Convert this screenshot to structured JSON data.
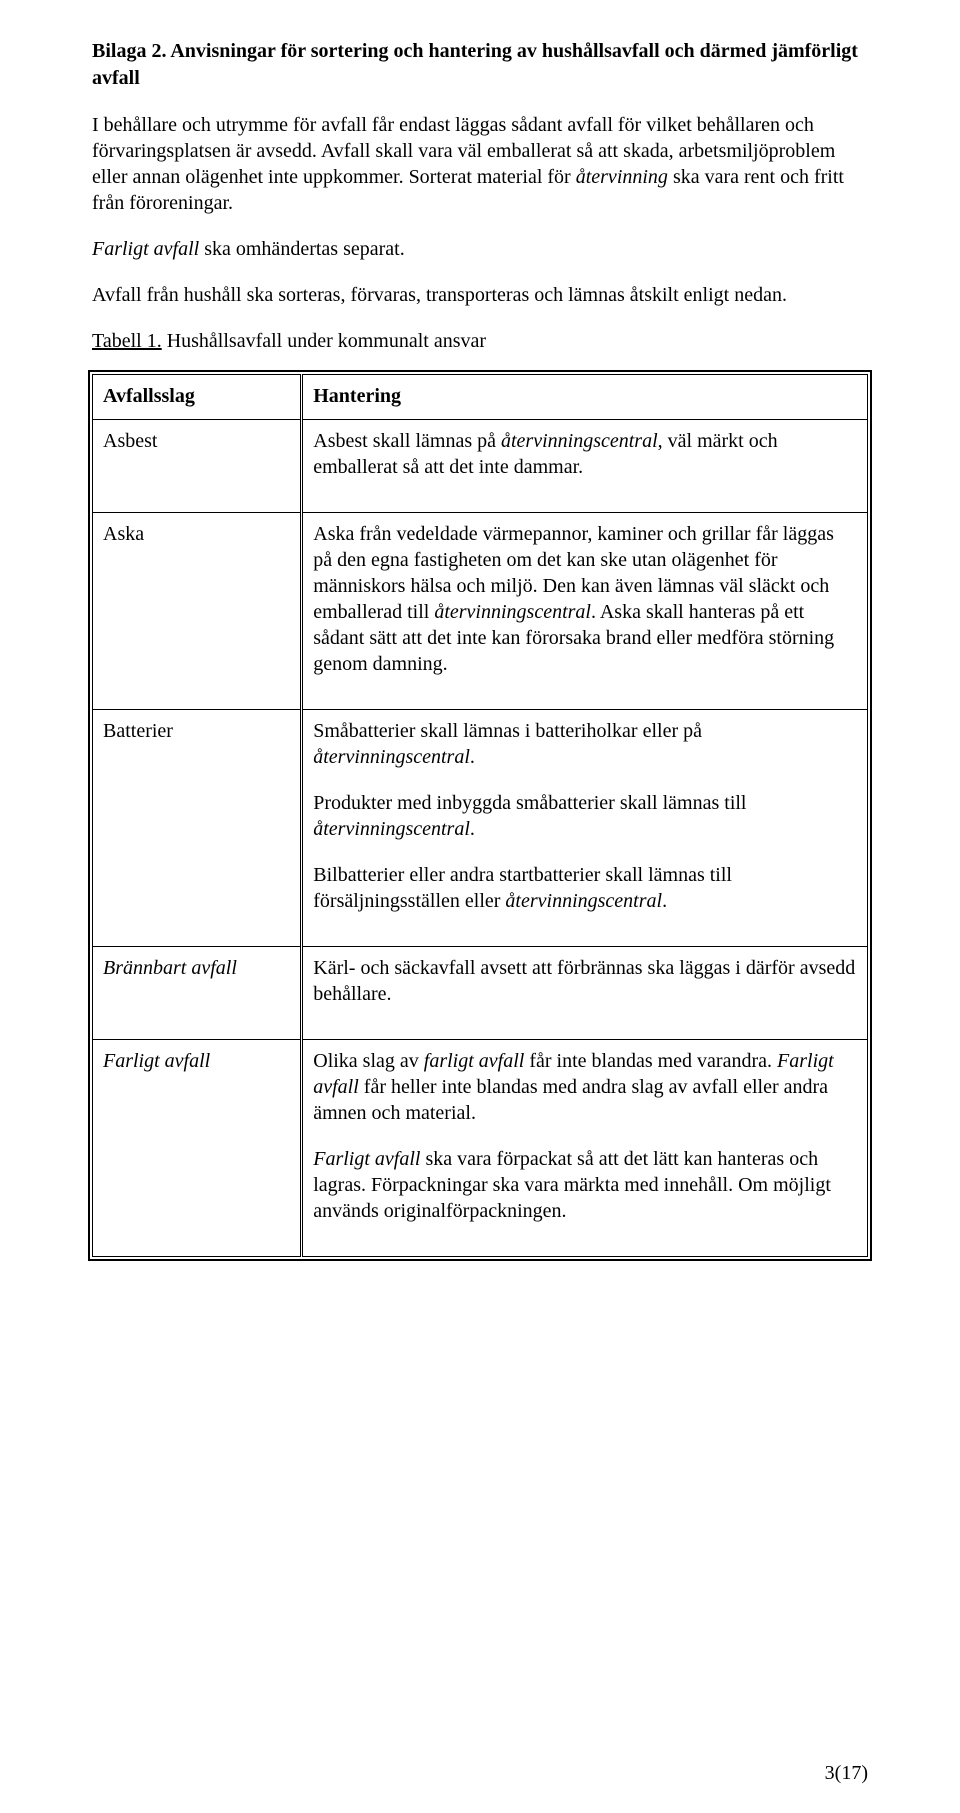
{
  "heading": "Bilaga 2. Anvisningar för sortering och hantering av hushållsavfall och därmed jämförligt avfall",
  "intro": {
    "p1_pre": "I behållare och utrymme för avfall får endast läggas sådant avfall för vilket behållaren och förvaringsplatsen är avsedd. Avfall skall vara väl emballerat så att skada, arbetsmiljöproblem eller annan olägenhet inte uppkommer. Sorterat material för ",
    "p1_it1": "återvinning",
    "p1_post": " ska vara rent och fritt från föroreningar.",
    "p2_it": "Farligt avfall",
    "p2_rest": " ska omhändertas separat.",
    "p3": "Avfall från hushåll ska sorteras, förvaras, transporteras och lämnas åtskilt enligt nedan.",
    "table_caption_u": "Tabell 1.",
    "table_caption_rest": " Hushållsavfall under kommunalt ansvar"
  },
  "table": {
    "header_col1": "Avfallsslag",
    "header_col2": "Hantering",
    "rows": {
      "asbest": {
        "label": "Asbest",
        "desc_pre": "Asbest skall lämnas på ",
        "desc_it": "återvinningscentral",
        "desc_post": ", väl märkt och emballerat så att det inte dammar."
      },
      "aska": {
        "label": "Aska",
        "desc_pre": "Aska från vedeldade värmepannor, kaminer och grillar får läggas på den egna fastigheten om det kan ske utan olägenhet för människors hälsa och miljö. Den kan även lämnas väl släckt och emballerad till ",
        "desc_it": "återvinningscentral",
        "desc_post": ". Aska skall hanteras på ett sådant sätt att det inte kan förorsaka brand eller medföra störning genom damning."
      },
      "batterier": {
        "label": "Batterier",
        "b1_pre": "Småbatterier skall lämnas i batteriholkar eller på ",
        "b1_it": "återvinningscentral",
        "b1_post": ".",
        "b2_pre": "Produkter med inbyggda småbatterier skall lämnas till ",
        "b2_it": "återvinningscentral",
        "b2_post": ".",
        "b3_pre": "Bilbatterier eller andra startbatterier skall lämnas till försäljningsställen eller ",
        "b3_it": "återvinningscentral",
        "b3_post": "."
      },
      "brannbart": {
        "label": "Brännbart avfall",
        "desc": "Kärl- och säckavfall avsett att förbrännas ska läggas i därför avsedd behållare."
      },
      "farligt": {
        "label": "Farligt avfall",
        "p1_pre": "Olika slag av ",
        "p1_it1": "farligt avfall",
        "p1_mid": " får inte blandas med varandra. ",
        "p1_it2": "Farligt avfall",
        "p1_post": " får heller inte blandas med andra slag av avfall eller andra ämnen och material.",
        "p2_it": "Farligt avfall",
        "p2_rest": " ska vara förpackat så att det lätt kan hanteras och lagras. Förpackningar ska vara märkta med innehåll. Om möjligt används originalförpackningen."
      }
    }
  },
  "footer": "3(17)"
}
